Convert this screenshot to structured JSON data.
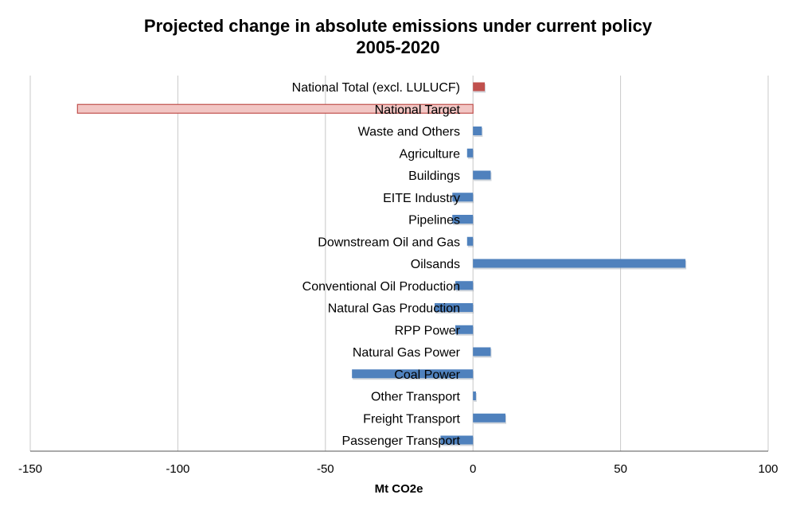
{
  "chart_data": {
    "type": "bar",
    "orientation": "horizontal",
    "title": "Projected change in absolute emissions under current policy",
    "subtitle": "2005-2020",
    "xlabel": "Mt CO2e",
    "ylabel": "",
    "xlim": [
      -150,
      100
    ],
    "xticks": [
      -150,
      -100,
      -50,
      0,
      50,
      100
    ],
    "xtick_labels": [
      "-150",
      "-100",
      "-50",
      "0",
      "50",
      "100"
    ],
    "grid": true,
    "legend": "none",
    "categories": [
      "National Total (excl. LULUCF)",
      "National Target",
      "Waste and Others",
      "Agriculture",
      "Buildings",
      "EITE Industry",
      "Pipelines",
      "Downstream Oil and Gas",
      "Oilsands",
      "Conventional Oil Production",
      "Natural Gas Production",
      "RPP Power",
      "Natural  Gas Power",
      "Coal Power",
      "Other Transport",
      "Freight Transport",
      "Passenger Transport"
    ],
    "values": [
      4,
      -134,
      3,
      -2,
      6,
      -7,
      -7,
      -2,
      72,
      -6,
      -13,
      -6,
      6,
      -41,
      1,
      11,
      -11
    ],
    "colors": {
      "default": "#4f81bd",
      "national_total": "#c0504d",
      "national_target_fill": "#f2c6c4",
      "national_target_stroke": "#c0504d"
    }
  }
}
